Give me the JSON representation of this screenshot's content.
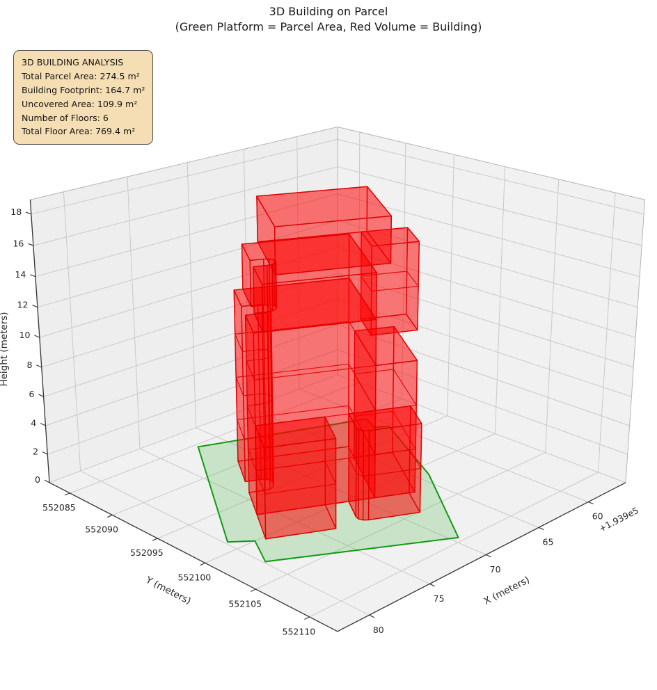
{
  "figure": {
    "title": "3D Building on Parcel",
    "subtitle": "(Green Platform = Parcel Area, Red Volume = Building)"
  },
  "info_box": {
    "lines": [
      "3D BUILDING ANALYSIS",
      "Total Parcel Area: 274.5 m²",
      "Building Footprint: 164.7 m²",
      "Uncovered Area: 109.9 m²",
      "Number of Floors: 6",
      "Total Floor Area: 769.4 m²"
    ],
    "bg_color": "#f5deb3",
    "border_color": "#4d4d4d"
  },
  "chart_data": {
    "type": "3d-building-massing",
    "title": "3D Building on Parcel",
    "subtitle": "(Green Platform = Parcel Area, Red Volume = Building)",
    "legend": {
      "green_platform": "Parcel Area",
      "red_volume": "Building"
    },
    "x_axis": {
      "label": "X (meters)",
      "offset_text": "+1.939e5",
      "ticks": [
        60,
        65,
        70,
        75,
        80
      ],
      "range": [
        56,
        82.5
      ]
    },
    "y_axis": {
      "label": "Y (meters)",
      "ticks": [
        552085,
        552090,
        552095,
        552100,
        552105,
        552110
      ],
      "range": [
        552082.5,
        552112.5
      ]
    },
    "z_axis": {
      "label": "Height (meters)",
      "ticks": [
        0,
        2,
        4,
        6,
        8,
        10,
        12,
        14,
        16,
        18
      ],
      "range": [
        0,
        18.9
      ]
    },
    "grid": true,
    "analysis": {
      "total_parcel_area_m2": 274.5,
      "building_footprint_m2": 164.7,
      "uncovered_area_m2": 109.9,
      "number_of_floors": 6,
      "total_floor_area_m2": 769.4
    },
    "frame": {
      "origin": [
        72.0,
        552085.4
      ],
      "e1": [
        0.5032,
        0.8645
      ],
      "e2": [
        -0.8645,
        0.5032
      ]
    },
    "parcel": {
      "color": "#109b10",
      "fill": "#35b035",
      "fill_opacity": 0.22,
      "z": 0,
      "polygon_st": [
        [
          0,
          0
        ],
        [
          15.5,
          0
        ],
        [
          15.9,
          1.7
        ],
        [
          18.9,
          1.9
        ],
        [
          19.6,
          14.3
        ],
        [
          9.8,
          14.8
        ],
        [
          0.8,
          14.0
        ],
        [
          0.6,
          12.9
        ],
        [
          -1.1,
          12.7
        ]
      ]
    },
    "building": {
      "face_color": "#ff0000",
      "edge_color": "#dc0000",
      "face_opacity": 0.3,
      "floor_height": 3,
      "num_floors": 6,
      "total_height_m": 18,
      "masses": [
        {
          "name": "main-block",
          "z": [
            0,
            12
          ],
          "footprint_st": [
            [
              3.4,
              10.4
            ],
            [
              3.4,
              2.4
            ],
            [
              6.9,
              2.4
            ],
            [
              6.9,
              3.5
            ],
            [
              6.99,
              3.85
            ],
            [
              7.25,
              4.11
            ],
            [
              7.6,
              4.2
            ],
            [
              8.0,
              4.2
            ],
            [
              8.35,
              4.11
            ],
            [
              8.61,
              3.85
            ],
            [
              8.7,
              3.5
            ],
            [
              8.7,
              2.4
            ],
            [
              12.2,
              2.4
            ],
            [
              12.2,
              10.4
            ]
          ]
        },
        {
          "name": "mid-block",
          "z": [
            12,
            15
          ],
          "footprint_st": [
            [
              3.4,
              10.4
            ],
            [
              3.4,
              3.0
            ],
            [
              7.1,
              3.0
            ],
            [
              7.1,
              3.9
            ],
            [
              7.19,
              4.25
            ],
            [
              7.45,
              4.51
            ],
            [
              7.8,
              4.6
            ],
            [
              8.15,
              4.51
            ],
            [
              8.41,
              4.25
            ],
            [
              8.5,
              3.9
            ],
            [
              8.5,
              3.0
            ],
            [
              12.2,
              3.0
            ],
            [
              12.2,
              10.4
            ]
          ]
        },
        {
          "name": "top-floor",
          "z": [
            15,
            18
          ],
          "footprint_st": [
            [
              3.2,
              11.7
            ],
            [
              3.2,
              4.1
            ],
            [
              10.6,
              4.1
            ],
            [
              10.6,
              11.7
            ]
          ]
        },
        {
          "name": "front-wing",
          "z": [
            0,
            6
          ],
          "footprint_st": [
            [
              12.2,
              7.0
            ],
            [
              12.2,
              2.4
            ],
            [
              15.85,
              2.4
            ],
            [
              15.85,
              7.0
            ]
          ]
        },
        {
          "name": "front-right-wing",
          "z": [
            0,
            6
          ],
          "footprint_st": [
            [
              12.2,
              12.8
            ],
            [
              12.2,
              8.6
            ],
            [
              14.6,
              8.6
            ],
            [
              14.95,
              8.69
            ],
            [
              15.21,
              8.95
            ],
            [
              15.3,
              9.3
            ],
            [
              15.3,
              12.8
            ]
          ]
        },
        {
          "name": "right-wing",
          "z": [
            0,
            9
          ],
          "footprint_st": [
            [
              5.4,
              13.2
            ],
            [
              5.4,
              10.4
            ],
            [
              12.2,
              10.4
            ],
            [
              12.2,
              13.2
            ]
          ]
        },
        {
          "name": "right-tower",
          "z": [
            9,
            15
          ],
          "footprint_st": [
            [
              3.2,
              14.6
            ],
            [
              3.2,
              11.3
            ],
            [
              6.6,
              11.3
            ],
            [
              6.6,
              14.6
            ]
          ]
        }
      ]
    }
  }
}
